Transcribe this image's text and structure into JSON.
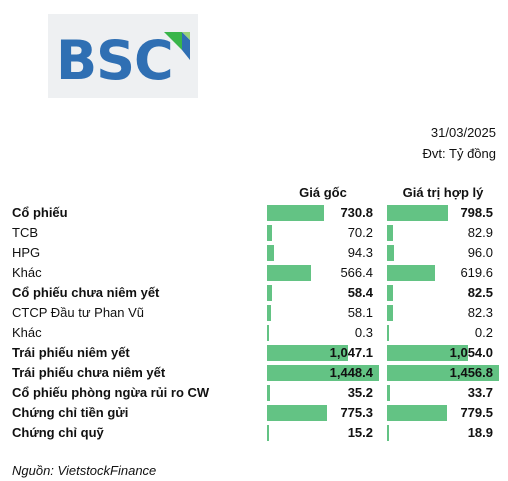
{
  "brand": {
    "logo_text": "BSC"
  },
  "meta": {
    "date": "31/03/2025",
    "unit": "Đvt: Tỷ đồng"
  },
  "colors": {
    "bar": "#63c384",
    "logo_blue": "#2f6fb3",
    "logo_green": "#39b54a"
  },
  "chart_data": {
    "type": "table",
    "columns": [
      "Giá gốc",
      "Giá trị hợp lý"
    ],
    "rows": [
      {
        "label": "Cổ phiếu",
        "bold": true,
        "values": [
          730.8,
          798.5
        ],
        "display": [
          "730.8",
          "798.5"
        ]
      },
      {
        "label": "TCB",
        "bold": false,
        "values": [
          70.2,
          82.9
        ],
        "display": [
          "70.2",
          "82.9"
        ]
      },
      {
        "label": "HPG",
        "bold": false,
        "values": [
          94.3,
          96.0
        ],
        "display": [
          "94.3",
          "96.0"
        ]
      },
      {
        "label": "Khác",
        "bold": false,
        "values": [
          566.4,
          619.6
        ],
        "display": [
          "566.4",
          "619.6"
        ]
      },
      {
        "label": "Cổ phiếu chưa niêm yết",
        "bold": true,
        "values": [
          58.4,
          82.5
        ],
        "display": [
          "58.4",
          "82.5"
        ]
      },
      {
        "label": "CTCP Đầu tư Phan Vũ",
        "bold": false,
        "values": [
          58.1,
          82.3
        ],
        "display": [
          "58.1",
          "82.3"
        ]
      },
      {
        "label": "Khác",
        "bold": false,
        "values": [
          0.3,
          0.2
        ],
        "display": [
          "0.3",
          "0.2"
        ]
      },
      {
        "label": "Trái phiếu niêm yết",
        "bold": true,
        "values": [
          1047.1,
          1054.0
        ],
        "display": [
          "1,047.1",
          "1,054.0"
        ]
      },
      {
        "label": "Trái phiếu chưa niêm yết",
        "bold": true,
        "values": [
          1448.4,
          1456.8
        ],
        "display": [
          "1,448.4",
          "1,456.8"
        ]
      },
      {
        "label": "Cổ phiếu phòng ngừa rủi ro CW",
        "bold": true,
        "values": [
          35.2,
          33.7
        ],
        "display": [
          "35.2",
          "33.7"
        ]
      },
      {
        "label": "Chứng chỉ tiền gửi",
        "bold": true,
        "values": [
          775.3,
          779.5
        ],
        "display": [
          "775.3",
          "779.5"
        ]
      },
      {
        "label": "Chứng chỉ quỹ",
        "bold": true,
        "values": [
          15.2,
          18.9
        ],
        "display": [
          "15.2",
          "18.9"
        ]
      }
    ]
  },
  "source": "Nguồn: VietstockFinance"
}
